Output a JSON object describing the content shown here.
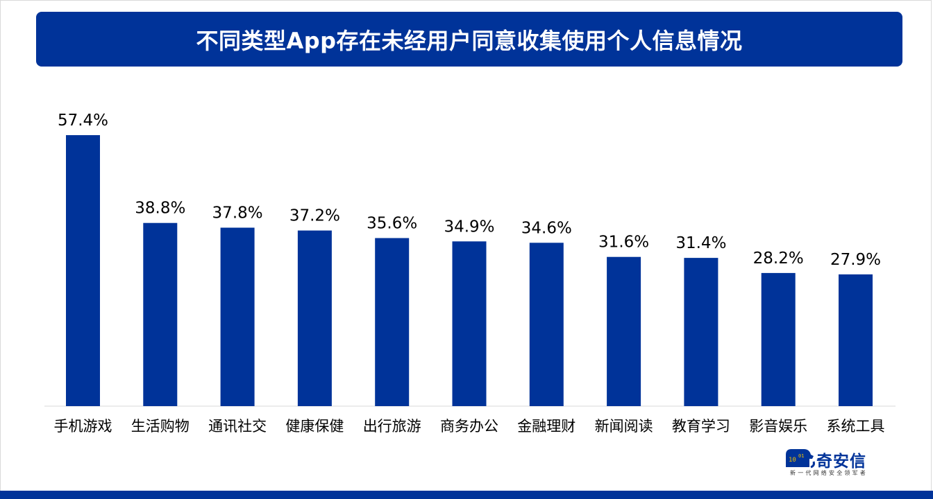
{
  "title": "不同类型App存在未经用户同意收集使用个人信息情况",
  "colors": {
    "accent": "#003399",
    "bar": "#003399",
    "axis": "#d9d9d9",
    "text": "#000000"
  },
  "logo": {
    "name": "奇安信",
    "tagline": "新一代网络安全领军者",
    "icon": "lion-logo-icon"
  },
  "chart_data": {
    "type": "bar",
    "title": "不同类型App存在未经用户同意收集使用个人信息情况",
    "categories": [
      "手机游戏",
      "生活购物",
      "通讯社交",
      "健康保健",
      "出行旅游",
      "商务办公",
      "金融理财",
      "新闻阅读",
      "教育学习",
      "影音娱乐",
      "系统工具"
    ],
    "values": [
      57.4,
      38.8,
      37.8,
      37.2,
      35.6,
      34.9,
      34.6,
      31.6,
      31.4,
      28.2,
      27.9
    ],
    "value_labels": [
      "57.4%",
      "38.8%",
      "37.8%",
      "37.2%",
      "35.6%",
      "34.9%",
      "34.6%",
      "31.6%",
      "31.4%",
      "28.2%",
      "27.9%"
    ],
    "unit": "%",
    "ylim": [
      0,
      57.4
    ],
    "grid": false,
    "legend": "none"
  }
}
